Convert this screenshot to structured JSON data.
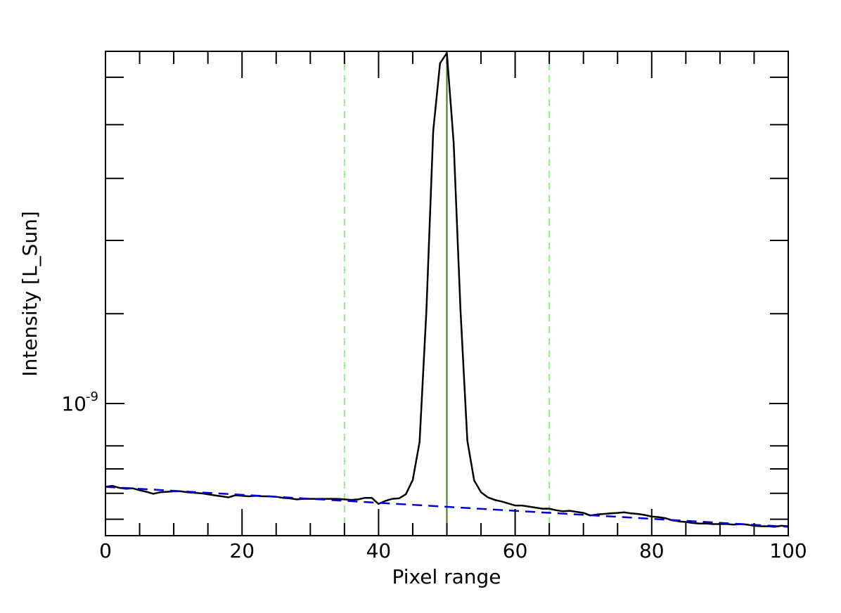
{
  "chart_data": {
    "type": "line",
    "title": "",
    "xlabel": "Pixel range",
    "ylabel": "Intensity [L_Sun]",
    "xlim": [
      0,
      100
    ],
    "ylim": [
      7.2e-10,
      2.4e-09
    ],
    "yscale": "log",
    "xticks": [
      "0",
      "20",
      "40",
      "60",
      "80",
      "100"
    ],
    "yticks": [
      {
        "base": "10",
        "exp": "-9"
      }
    ],
    "grid": false,
    "legend": "none",
    "series": [
      {
        "color": "#000000",
        "style": "solid",
        "x": [
          0,
          1,
          2,
          3,
          4,
          5,
          6,
          7,
          8,
          9,
          10,
          11,
          12,
          13,
          14,
          15,
          16,
          17,
          18,
          19,
          20,
          21,
          22,
          23,
          24,
          25,
          26,
          27,
          28,
          29,
          30,
          31,
          32,
          33,
          34,
          35,
          36,
          37,
          38,
          39,
          40,
          41,
          42,
          43,
          44,
          45,
          46,
          47,
          48,
          49,
          50,
          51,
          52,
          53,
          54,
          55,
          56,
          57,
          58,
          59,
          60,
          61,
          62,
          63,
          64,
          65,
          66,
          67,
          68,
          69,
          70,
          71,
          72,
          73,
          74,
          75,
          76,
          77,
          78,
          79,
          80,
          81,
          82,
          83,
          84,
          85,
          86,
          87,
          88,
          89,
          90,
          91,
          92,
          93,
          94,
          95,
          96,
          97,
          98,
          99,
          100
        ],
        "values": [
          8.13e-10,
          8.15e-10,
          8.11e-10,
          8.09e-10,
          8.1e-10,
          8.06e-10,
          8.03e-10,
          7.99e-10,
          8.02e-10,
          8.03e-10,
          8.04e-10,
          8.04e-10,
          8.02e-10,
          8.01e-10,
          8e-10,
          7.98e-10,
          7.96e-10,
          7.94e-10,
          7.92e-10,
          7.96e-10,
          7.95e-10,
          7.94e-10,
          7.95e-10,
          7.94e-10,
          7.94e-10,
          7.93e-10,
          7.91e-10,
          7.9e-10,
          7.88e-10,
          7.89e-10,
          7.89e-10,
          7.89e-10,
          7.89e-10,
          7.89e-10,
          7.89e-10,
          7.88e-10,
          7.87e-10,
          7.88e-10,
          7.91e-10,
          7.91e-10,
          7.79e-10,
          7.85e-10,
          7.89e-10,
          7.9e-10,
          7.98e-10,
          8.27e-10,
          9.09e-10,
          1.26e-09,
          1.97e-09,
          2.33e-09,
          2.39e-09,
          1.91e-09,
          1.26e-09,
          9.12e-10,
          8.26e-10,
          8.02e-10,
          7.92e-10,
          7.87e-10,
          7.84e-10,
          7.8e-10,
          7.76e-10,
          7.76e-10,
          7.74e-10,
          7.72e-10,
          7.7e-10,
          7.7e-10,
          7.67e-10,
          7.65e-10,
          7.66e-10,
          7.64e-10,
          7.62e-10,
          7.57e-10,
          7.59e-10,
          7.6e-10,
          7.61e-10,
          7.62e-10,
          7.63e-10,
          7.61e-10,
          7.6e-10,
          7.58e-10,
          7.55e-10,
          7.54e-10,
          7.52e-10,
          7.48e-10,
          7.46e-10,
          7.45e-10,
          7.43e-10,
          7.42e-10,
          7.42e-10,
          7.41e-10,
          7.41e-10,
          7.41e-10,
          7.4e-10,
          7.41e-10,
          7.4e-10,
          7.38e-10,
          7.37e-10,
          7.37e-10,
          7.36e-10,
          7.38e-10,
          7.37e-10
        ]
      },
      {
        "color": "#0000dd",
        "style": "dashed",
        "x": [
          0,
          100
        ],
        "values": [
          8.13e-10,
          7.36e-10
        ]
      }
    ],
    "vlines": [
      {
        "x": 35,
        "color": "#90ee90",
        "style": "dashed"
      },
      {
        "x": 50,
        "color": "#3a7a1a",
        "style": "solid"
      },
      {
        "x": 65,
        "color": "#90ee90",
        "style": "dashed"
      }
    ]
  }
}
